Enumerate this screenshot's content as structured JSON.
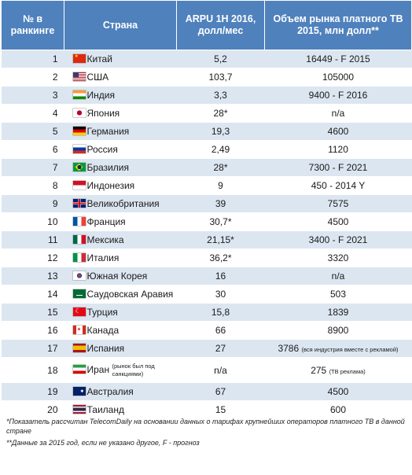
{
  "headers": {
    "rank": "№ в ранкинге",
    "country": "Страна",
    "arpu": "ARPU 1H 2016, долл/мес",
    "market": "Объем рынка платного ТВ 2015, млн долл**"
  },
  "rows": [
    {
      "rank": "1",
      "flag": "china-flag-icon",
      "country": "Китай",
      "arpu": "5,2",
      "market": "16449 -  F 2015"
    },
    {
      "rank": "2",
      "flag": "usa-flag-icon",
      "country": "США",
      "arpu": "103,7",
      "market": "105000"
    },
    {
      "rank": "3",
      "flag": "india-flag-icon",
      "country": "Индия",
      "arpu": "3,3",
      "market": "9400 - F 2016"
    },
    {
      "rank": "4",
      "flag": "japan-flag-icon",
      "country": "Япония",
      "arpu": "28*",
      "market": "n/a"
    },
    {
      "rank": "5",
      "flag": "germany-flag-icon",
      "country": "Германия",
      "arpu": "19,3",
      "market": "4600"
    },
    {
      "rank": "6",
      "flag": "russia-flag-icon",
      "country": "Россия",
      "arpu": "2,49",
      "market": "1120"
    },
    {
      "rank": "7",
      "flag": "brazil-flag-icon",
      "country": "Бразилия",
      "arpu": "28*",
      "market": "7300 -  F 2021"
    },
    {
      "rank": "8",
      "flag": "indonesia-flag-icon",
      "country": "Индонезия",
      "arpu": "9",
      "market": "450 - 2014 Y"
    },
    {
      "rank": "9",
      "flag": "uk-flag-icon",
      "country": "Великобритания",
      "arpu": "39",
      "market": "7575"
    },
    {
      "rank": "10",
      "flag": "france-flag-icon",
      "country": "Франция",
      "arpu": "30,7*",
      "market": "4500"
    },
    {
      "rank": "11",
      "flag": "mexico-flag-icon",
      "country": "Мексика",
      "arpu": "21,15*",
      "market": "3400 - F 2021"
    },
    {
      "rank": "12",
      "flag": "italy-flag-icon",
      "country": "Италия",
      "arpu": "36,2*",
      "market": "3320"
    },
    {
      "rank": "13",
      "flag": "south-korea-flag-icon",
      "country": "Южная Корея",
      "arpu": "16",
      "market": "n/a"
    },
    {
      "rank": "14",
      "flag": "saudi-arabia-flag-icon",
      "country": "Саудовская Аравия",
      "arpu": "30",
      "market": "503"
    },
    {
      "rank": "15",
      "flag": "turkey-flag-icon",
      "country": "Турция",
      "arpu": "15,8",
      "market": "1839"
    },
    {
      "rank": "16",
      "flag": "canada-flag-icon",
      "country": "Канада",
      "arpu": "66",
      "market": "8900"
    },
    {
      "rank": "17",
      "flag": "spain-flag-icon",
      "country": "Испания",
      "arpu": "27",
      "market": "3786",
      "market_note": "(вся индустрия вместе с рекламой)"
    },
    {
      "rank": "18",
      "flag": "iran-flag-icon",
      "country": "Иран",
      "country_note": "(рынок был под санкциями)",
      "arpu": "n/a",
      "market": "275",
      "market_note": "(ТВ реклама)"
    },
    {
      "rank": "19",
      "flag": "australia-flag-icon",
      "country": "Австралия",
      "arpu": "67",
      "market": "4500"
    },
    {
      "rank": "20",
      "flag": "thailand-flag-icon",
      "country": "Таиланд",
      "arpu": "15",
      "market": "600"
    }
  ],
  "footnotes": {
    "first": "*Показатель рассчитан TelecomDaily на основании данных о тарифах крупнейших операторов платного ТВ в данной стране",
    "second": "**Данные за 2015 год, если не указано другое, F - прогноз"
  }
}
